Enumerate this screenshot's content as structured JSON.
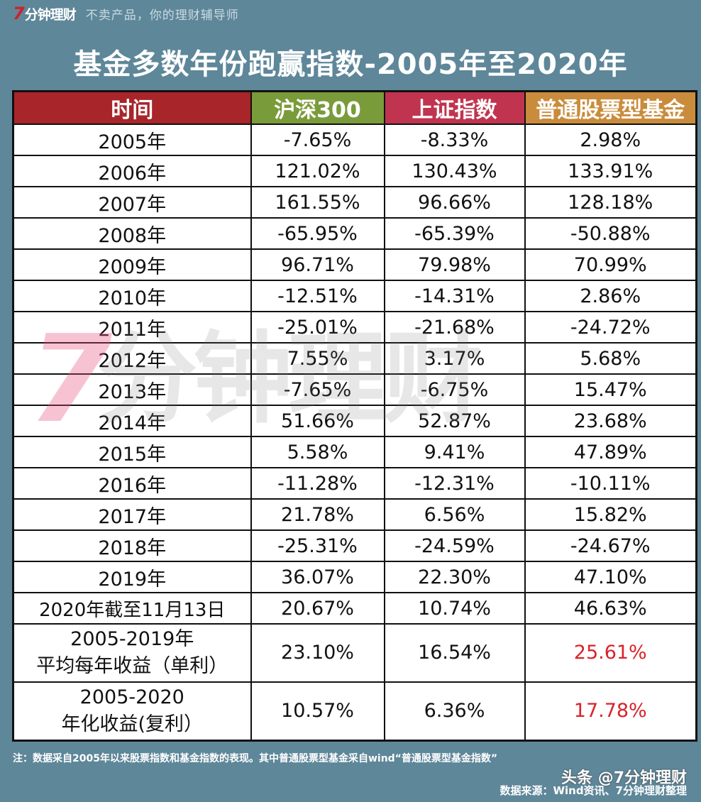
{
  "brand": {
    "logo_number": "7",
    "logo_text": "分钟理财",
    "slogan": "不卖产品，你的理财辅导师"
  },
  "title": "基金多数年份跑赢指数-2005年至2020年",
  "colors": {
    "background": "#5e8799",
    "header_time": "#a8252a",
    "header_hs300": "#7a9b3a",
    "header_sz": "#c0344f",
    "header_fund": "#c98c3c",
    "highlight_red": "#d9232b"
  },
  "table": {
    "headers": [
      "时间",
      "沪深300",
      "上证指数",
      "普通股票型基金"
    ],
    "rows": [
      [
        "2005年",
        "-7.65%",
        "-8.33%",
        "2.98%"
      ],
      [
        "2006年",
        "121.02%",
        "130.43%",
        "133.91%"
      ],
      [
        "2007年",
        "161.55%",
        "96.66%",
        "128.18%"
      ],
      [
        "2008年",
        "-65.95%",
        "-65.39%",
        "-50.88%"
      ],
      [
        "2009年",
        "96.71%",
        "79.98%",
        "70.99%"
      ],
      [
        "2010年",
        "-12.51%",
        "-14.31%",
        "2.86%"
      ],
      [
        "2011年",
        "-25.01%",
        "-21.68%",
        "-24.72%"
      ],
      [
        "2012年",
        "7.55%",
        "3.17%",
        "5.68%"
      ],
      [
        "2013年",
        "-7.65%",
        "-6.75%",
        "15.47%"
      ],
      [
        "2014年",
        "51.66%",
        "52.87%",
        "23.68%"
      ],
      [
        "2015年",
        "5.58%",
        "9.41%",
        "47.89%"
      ],
      [
        "2016年",
        "-11.28%",
        "-12.31%",
        "-10.11%"
      ],
      [
        "2017年",
        "21.78%",
        "6.56%",
        "15.82%"
      ],
      [
        "2018年",
        "-25.31%",
        "-24.59%",
        "-24.67%"
      ],
      [
        "2019年",
        "36.07%",
        "22.30%",
        "47.10%"
      ],
      [
        "2020年截至11月13日",
        "20.67%",
        "10.74%",
        "46.63%"
      ]
    ],
    "summary": [
      {
        "label_line1": "2005-2019年",
        "label_line2": "平均每年收益（单利）",
        "hs300": "23.10%",
        "sz": "16.54%",
        "fund": "25.61%"
      },
      {
        "label_line1": "2005-2020",
        "label_line2": "年化收益(复利）",
        "hs300": "10.57%",
        "sz": "6.36%",
        "fund": "17.78%"
      }
    ]
  },
  "watermark": {
    "number": "7",
    "text": "分钟理财"
  },
  "footer": {
    "note": "注：数据采自2005年以来股票指数和基金指数的表现。其中普通股票型基金采自wind“普通股票型基金指数”",
    "credit_platform": "头条 @7分钟理财",
    "source": "数据来源：Wind资讯、7分钟理财整理"
  },
  "chart_data": {
    "type": "table",
    "title": "基金多数年份跑赢指数-2005年至2020年",
    "columns": [
      "时间",
      "沪深300",
      "上证指数",
      "普通股票型基金"
    ],
    "categories": [
      "2005",
      "2006",
      "2007",
      "2008",
      "2009",
      "2010",
      "2011",
      "2012",
      "2013",
      "2014",
      "2015",
      "2016",
      "2017",
      "2018",
      "2019",
      "2020 (to Nov 13)"
    ],
    "series": [
      {
        "name": "沪深300",
        "values": [
          -7.65,
          121.02,
          161.55,
          -65.95,
          96.71,
          -12.51,
          -25.01,
          7.55,
          -7.65,
          51.66,
          5.58,
          -11.28,
          21.78,
          -25.31,
          36.07,
          20.67
        ]
      },
      {
        "name": "上证指数",
        "values": [
          -8.33,
          130.43,
          96.66,
          -65.39,
          79.98,
          -14.31,
          -21.68,
          3.17,
          -6.75,
          52.87,
          9.41,
          -12.31,
          6.56,
          -24.59,
          22.3,
          10.74
        ]
      },
      {
        "name": "普通股票型基金",
        "values": [
          2.98,
          133.91,
          128.18,
          -50.88,
          70.99,
          2.86,
          -24.72,
          5.68,
          15.47,
          23.68,
          47.89,
          -10.11,
          15.82,
          -24.67,
          47.1,
          46.63
        ]
      }
    ],
    "summary": {
      "avg_annual_simple_2005_2019": {
        "沪深300": 23.1,
        "上证指数": 16.54,
        "普通股票型基金": 25.61
      },
      "annualized_compound_2005_2020": {
        "沪深300": 10.57,
        "上证指数": 6.36,
        "普通股票型基金": 17.78
      }
    },
    "unit": "%"
  }
}
